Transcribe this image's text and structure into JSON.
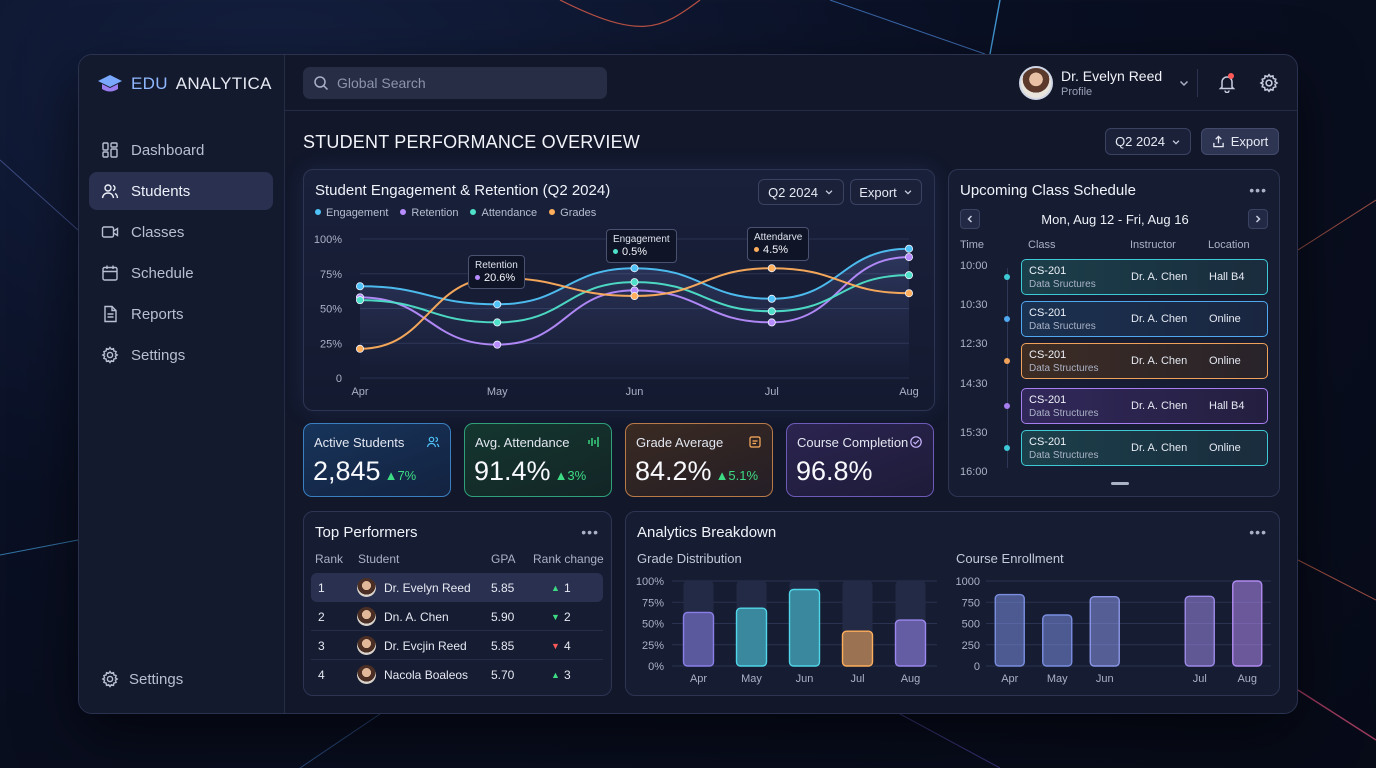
{
  "app": {
    "brand_a": "EDU",
    "brand_b": "ANALYTICA"
  },
  "sidebar": {
    "items": [
      {
        "label": "Dashboard",
        "icon": "dashboard-icon"
      },
      {
        "label": "Students",
        "icon": "students-icon",
        "active": true
      },
      {
        "label": "Classes",
        "icon": "classes-icon"
      },
      {
        "label": "Schedule",
        "icon": "calendar-icon"
      },
      {
        "label": "Reports",
        "icon": "document-icon"
      },
      {
        "label": "Settings",
        "icon": "gear-icon"
      }
    ],
    "bottom_label": "Settings"
  },
  "header": {
    "search_placeholder": "Global Search",
    "user_name": "Dr. Evelyn Reed",
    "user_sub": "Profile"
  },
  "page": {
    "title": "STUDENT PERFORMANCE OVERVIEW",
    "period": "Q2 2024",
    "export": "Export"
  },
  "engagement": {
    "title": "Student Engagement & Retention (Q2 2024)",
    "period": "Q2 2024",
    "export": "Export",
    "tooltips": [
      {
        "title": "Retention",
        "value": "20.6%"
      },
      {
        "title": "Engagement",
        "value": "0.5%"
      },
      {
        "title": "Attendarve",
        "value": "4.5%"
      }
    ]
  },
  "chart_data": [
    {
      "type": "line",
      "title": "Student Engagement & Retention (Q2 2024)",
      "x": [
        "Apr",
        "May",
        "Jun",
        "Jul",
        "Aug"
      ],
      "ylim": [
        0,
        100
      ],
      "yticks": [
        "0",
        "25%",
        "50%",
        "75%",
        "100%"
      ],
      "legend_position": "top-left",
      "grid": true,
      "series": [
        {
          "name": "Engagement",
          "color": "#4fc3f7",
          "values": [
            66,
            53,
            79,
            57,
            93
          ]
        },
        {
          "name": "Retention",
          "color": "#b78cff",
          "values": [
            58,
            24,
            63,
            40,
            87
          ]
        },
        {
          "name": "Attendance",
          "color": "#4ee0c8",
          "values": [
            56,
            40,
            69,
            48,
            74
          ]
        },
        {
          "name": "Grades",
          "color": "#ffae5c",
          "values": [
            21,
            72,
            59,
            79,
            61
          ]
        }
      ]
    },
    {
      "type": "bar",
      "title": "Grade Distribution",
      "categories": [
        "Apr",
        "May",
        "Jun",
        "Jul",
        "Aug"
      ],
      "yticks": [
        "0%",
        "25%",
        "50%",
        "75%",
        "100%"
      ],
      "ylim": [
        0,
        100
      ],
      "values": [
        63,
        68,
        90,
        41,
        54
      ],
      "colors": [
        "#8a7fe8",
        "#4fd6e8",
        "#4fd6e8",
        "#ffae5c",
        "#9c86f0"
      ]
    },
    {
      "type": "bar",
      "title": "Course Enrollment",
      "categories": [
        "Apr",
        "May",
        "Jun",
        "",
        "Jul",
        "Aug"
      ],
      "yticks": [
        "0",
        "250",
        "500",
        "750",
        "1000"
      ],
      "ylim": [
        0,
        1000
      ],
      "values": [
        840,
        600,
        815,
        null,
        820,
        1000
      ],
      "colors": [
        "#7a8ee0",
        "#7a8ee0",
        "#8a96e8",
        null,
        "#9d8ae8",
        "#b08af0"
      ]
    }
  ],
  "kpis": [
    {
      "label": "Active Students",
      "value": "2,845",
      "delta": "▲7%",
      "icon": "users-icon",
      "color": "#4fc3f7"
    },
    {
      "label": "Avg. Attendance",
      "value": "91.4%",
      "delta": "▲3%",
      "icon": "activity-icon",
      "color": "#3ddc84"
    },
    {
      "label": "Grade Average",
      "value": "84.2%",
      "delta": "▲5.1%",
      "icon": "grade-icon",
      "color": "#ffae5c"
    },
    {
      "label": "Course Completion",
      "value": "96.8%",
      "delta": "",
      "icon": "check-circle-icon",
      "color": "#b78cff"
    }
  ],
  "schedule": {
    "title": "Upcoming Class Schedule",
    "range": "Mon, Aug 12 - Fri, Aug 16",
    "headers": [
      "Time",
      "Class",
      "Instructor",
      "Location"
    ],
    "times": [
      "10:00",
      "10:30",
      "12:30",
      "14:30",
      "15:30",
      "16:00"
    ],
    "rows": [
      {
        "code": "CS-201",
        "name": "Data Sructures",
        "instructor": "Dr. A. Chen",
        "location": "Hall B4",
        "color": "#3ec9d6"
      },
      {
        "code": "CS-201",
        "name": "Data Sructures",
        "instructor": "Dr. A. Chen",
        "location": "Online",
        "color": "#4fa8f0"
      },
      {
        "code": "CS-201",
        "name": "Data Structures",
        "instructor": "Dr. A. Chen",
        "location": "Online",
        "color": "#f0a25a"
      },
      {
        "code": "CS-201",
        "name": "Data Structures",
        "instructor": "Dr. A. Chen",
        "location": "Hall B4",
        "color": "#a77ef0"
      },
      {
        "code": "CS-201",
        "name": "Data Structures",
        "instructor": "Dr. A. Chen",
        "location": "Online",
        "color": "#3ec9d6"
      }
    ]
  },
  "performers": {
    "title": "Top Performers",
    "headers": [
      "Rank",
      "Student",
      "GPA",
      "Rank change"
    ],
    "rows": [
      {
        "rank": "1",
        "name": "Dr. Evelyn Reed",
        "gpa": "5.85",
        "change": "1",
        "dir": "up"
      },
      {
        "rank": "2",
        "name": "Dn. A. Chen",
        "gpa": "5.90",
        "change": "2",
        "dir": "down"
      },
      {
        "rank": "3",
        "name": "Dr. Evcjin Reed",
        "gpa": "5.85",
        "change": "4",
        "dir": "down-red"
      },
      {
        "rank": "4",
        "name": "Nacola Boaleos",
        "gpa": "5.70",
        "change": "3",
        "dir": "up"
      }
    ]
  },
  "analytics": {
    "title": "Analytics Breakdown",
    "grade_title": "Grade Distribution",
    "enroll_title": "Course Enrollment"
  }
}
